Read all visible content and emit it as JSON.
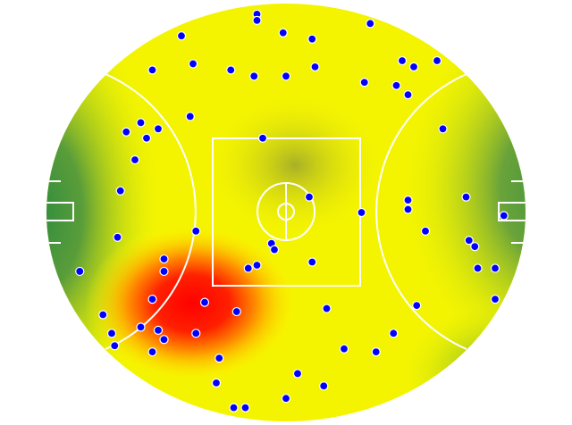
{
  "chart_data": {
    "type": "scatter",
    "title": "",
    "xlabel": "",
    "ylabel": "",
    "background": "field-heatmap",
    "colorscale": [
      "#2e8b3e",
      "#ffff00",
      "#ff0000"
    ],
    "point_color": "#0000ff",
    "point_stroke": "#ffffff",
    "line_color": "#ffffff",
    "grid": false,
    "points": [
      [
        -10,
        64
      ],
      [
        -10,
        62
      ],
      [
        -36,
        57
      ],
      [
        -1,
        58
      ],
      [
        9,
        56
      ],
      [
        29,
        61
      ],
      [
        -46,
        46
      ],
      [
        -32,
        48
      ],
      [
        -19,
        46
      ],
      [
        -11,
        44
      ],
      [
        0,
        44
      ],
      [
        10,
        47
      ],
      [
        27,
        42
      ],
      [
        40,
        49
      ],
      [
        44,
        47
      ],
      [
        52,
        49
      ],
      [
        38,
        41
      ],
      [
        42,
        38
      ],
      [
        -33,
        31
      ],
      [
        -50,
        29
      ],
      [
        -55,
        26
      ],
      [
        -48,
        24
      ],
      [
        -44,
        27
      ],
      [
        -8,
        24
      ],
      [
        54,
        27
      ],
      [
        -52,
        17
      ],
      [
        -57,
        7
      ],
      [
        8,
        5
      ],
      [
        42,
        4
      ],
      [
        42,
        1
      ],
      [
        62,
        5
      ],
      [
        26,
        0
      ],
      [
        75,
        -1
      ],
      [
        -58,
        -8
      ],
      [
        -31,
        -6
      ],
      [
        48,
        -6
      ],
      [
        63,
        -9
      ],
      [
        65,
        -11
      ],
      [
        -5,
        -10
      ],
      [
        -4,
        -12
      ],
      [
        -42,
        -15
      ],
      [
        -71,
        -19
      ],
      [
        -42,
        -19
      ],
      [
        -13,
        -18
      ],
      [
        -10,
        -17
      ],
      [
        9,
        -16
      ],
      [
        66,
        -18
      ],
      [
        72,
        -18
      ],
      [
        -46,
        -28
      ],
      [
        -28,
        -29
      ],
      [
        72,
        -28
      ],
      [
        -63,
        -33
      ],
      [
        -17,
        -32
      ],
      [
        14,
        -31
      ],
      [
        45,
        -30
      ],
      [
        -50,
        -37
      ],
      [
        -44,
        -38
      ],
      [
        -60,
        -39
      ],
      [
        -31,
        -39
      ],
      [
        -42,
        -41
      ],
      [
        37,
        -39
      ],
      [
        -59,
        -43
      ],
      [
        -46,
        -45
      ],
      [
        20,
        -44
      ],
      [
        31,
        -45
      ],
      [
        -23,
        -47
      ],
      [
        4,
        -52
      ],
      [
        -24,
        -55
      ],
      [
        13,
        -56
      ],
      [
        0,
        -60
      ],
      [
        -18,
        -63
      ],
      [
        -14,
        -63
      ]
    ]
  }
}
